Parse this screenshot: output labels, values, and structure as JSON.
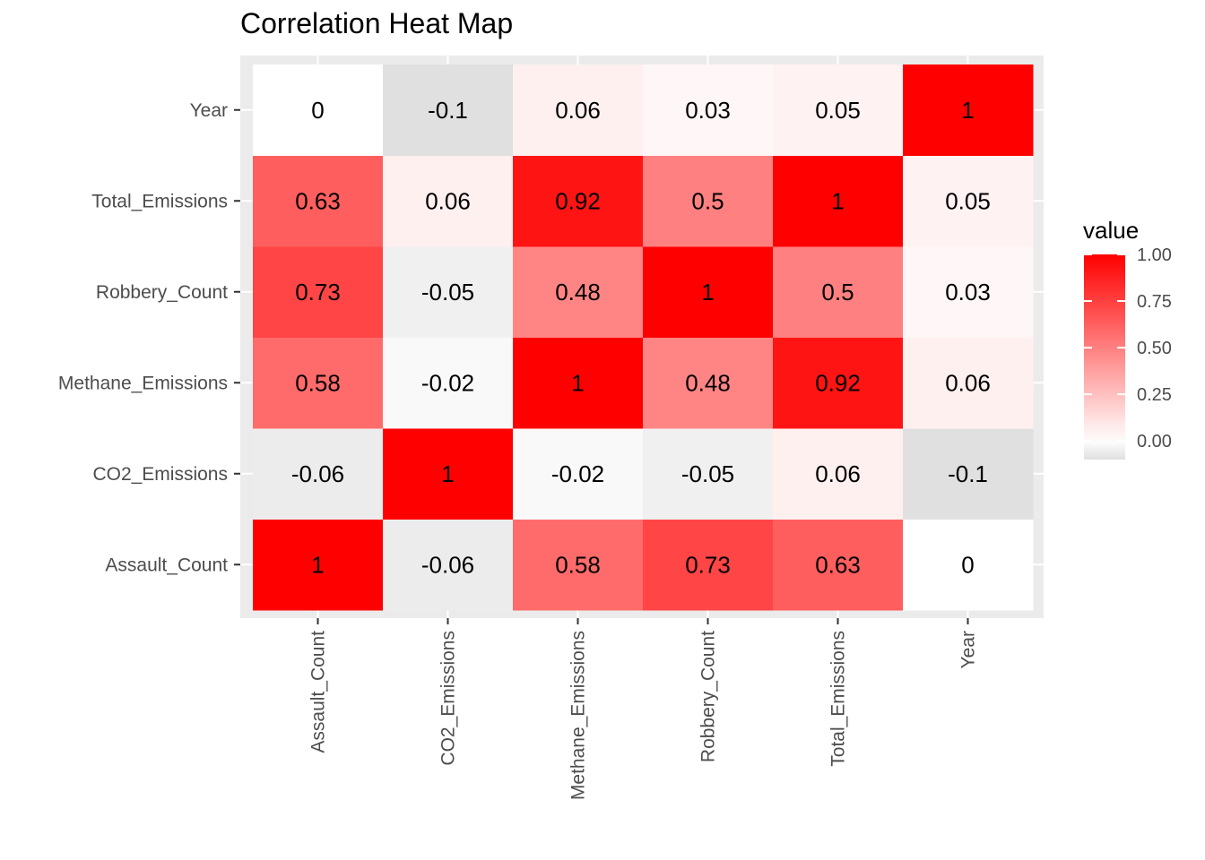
{
  "chart_data": {
    "type": "heatmap",
    "title": "Correlation Heat Map",
    "x_categories": [
      "Assault_Count",
      "CO2_Emissions",
      "Methane_Emissions",
      "Robbery_Count",
      "Total_Emissions",
      "Year"
    ],
    "y_categories": [
      "Assault_Count",
      "CO2_Emissions",
      "Methane_Emissions",
      "Robbery_Count",
      "Total_Emissions",
      "Year"
    ],
    "values": [
      [
        1,
        -0.06,
        0.58,
        0.73,
        0.63,
        0
      ],
      [
        -0.06,
        1,
        -0.02,
        -0.05,
        0.06,
        -0.1
      ],
      [
        0.58,
        -0.02,
        1,
        0.48,
        0.92,
        0.06
      ],
      [
        0.73,
        -0.05,
        0.48,
        1,
        0.5,
        0.03
      ],
      [
        0.63,
        0.06,
        0.92,
        0.5,
        1,
        0.05
      ],
      [
        0,
        -0.1,
        0.06,
        0.03,
        0.05,
        1
      ]
    ],
    "value_labels": [
      [
        "1",
        "-0.06",
        "0.58",
        "0.73",
        "0.63",
        "0"
      ],
      [
        "-0.06",
        "1",
        "-0.02",
        "-0.05",
        "0.06",
        "-0.1"
      ],
      [
        "0.58",
        "-0.02",
        "1",
        "0.48",
        "0.92",
        "0.06"
      ],
      [
        "0.73",
        "-0.05",
        "0.48",
        "1",
        "0.5",
        "0.03"
      ],
      [
        "0.63",
        "0.06",
        "0.92",
        "0.5",
        "1",
        "0.05"
      ],
      [
        "0",
        "-0.1",
        "0.06",
        "0.03",
        "0.05",
        "1"
      ]
    ],
    "legend": {
      "title": "value",
      "placement": "right",
      "ticks": [
        1.0,
        0.75,
        0.5,
        0.25,
        0.0
      ],
      "tick_labels": [
        "1.00",
        "0.75",
        "0.50",
        "0.25",
        "0.00"
      ],
      "range": [
        -0.1,
        1.0
      ]
    },
    "colors": {
      "low": "#e0e0e0",
      "mid": "#ffffff",
      "high": "#ff0000",
      "panel_background": "#ebebeb",
      "grid": "#ffffff"
    },
    "grid": true
  }
}
